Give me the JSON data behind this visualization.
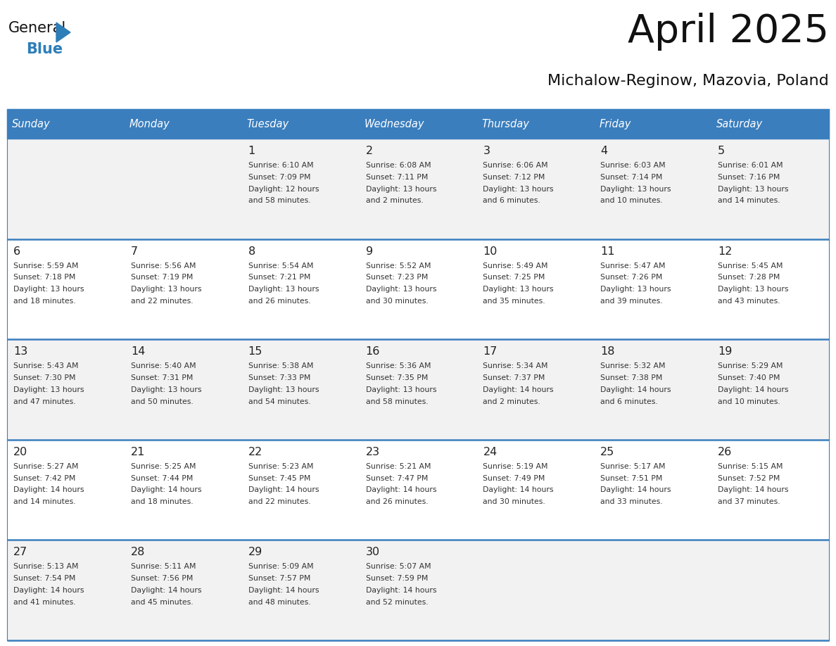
{
  "title": "April 2025",
  "subtitle": "Michalow-Reginow, Mazovia, Poland",
  "header_bg_color": "#3a7ebe",
  "header_text_color": "#FFFFFF",
  "day_names": [
    "Sunday",
    "Monday",
    "Tuesday",
    "Wednesday",
    "Thursday",
    "Friday",
    "Saturday"
  ],
  "row_colors": [
    "#f2f2f2",
    "#ffffff",
    "#f2f2f2",
    "#ffffff",
    "#f2f2f2"
  ],
  "separator_color": "#3a7ebe",
  "date_color": "#222222",
  "cell_text_color": "#333333",
  "calendar_data": [
    [
      {
        "day": "",
        "info": ""
      },
      {
        "day": "",
        "info": ""
      },
      {
        "day": "1",
        "info": "Sunrise: 6:10 AM\nSunset: 7:09 PM\nDaylight: 12 hours\nand 58 minutes."
      },
      {
        "day": "2",
        "info": "Sunrise: 6:08 AM\nSunset: 7:11 PM\nDaylight: 13 hours\nand 2 minutes."
      },
      {
        "day": "3",
        "info": "Sunrise: 6:06 AM\nSunset: 7:12 PM\nDaylight: 13 hours\nand 6 minutes."
      },
      {
        "day": "4",
        "info": "Sunrise: 6:03 AM\nSunset: 7:14 PM\nDaylight: 13 hours\nand 10 minutes."
      },
      {
        "day": "5",
        "info": "Sunrise: 6:01 AM\nSunset: 7:16 PM\nDaylight: 13 hours\nand 14 minutes."
      }
    ],
    [
      {
        "day": "6",
        "info": "Sunrise: 5:59 AM\nSunset: 7:18 PM\nDaylight: 13 hours\nand 18 minutes."
      },
      {
        "day": "7",
        "info": "Sunrise: 5:56 AM\nSunset: 7:19 PM\nDaylight: 13 hours\nand 22 minutes."
      },
      {
        "day": "8",
        "info": "Sunrise: 5:54 AM\nSunset: 7:21 PM\nDaylight: 13 hours\nand 26 minutes."
      },
      {
        "day": "9",
        "info": "Sunrise: 5:52 AM\nSunset: 7:23 PM\nDaylight: 13 hours\nand 30 minutes."
      },
      {
        "day": "10",
        "info": "Sunrise: 5:49 AM\nSunset: 7:25 PM\nDaylight: 13 hours\nand 35 minutes."
      },
      {
        "day": "11",
        "info": "Sunrise: 5:47 AM\nSunset: 7:26 PM\nDaylight: 13 hours\nand 39 minutes."
      },
      {
        "day": "12",
        "info": "Sunrise: 5:45 AM\nSunset: 7:28 PM\nDaylight: 13 hours\nand 43 minutes."
      }
    ],
    [
      {
        "day": "13",
        "info": "Sunrise: 5:43 AM\nSunset: 7:30 PM\nDaylight: 13 hours\nand 47 minutes."
      },
      {
        "day": "14",
        "info": "Sunrise: 5:40 AM\nSunset: 7:31 PM\nDaylight: 13 hours\nand 50 minutes."
      },
      {
        "day": "15",
        "info": "Sunrise: 5:38 AM\nSunset: 7:33 PM\nDaylight: 13 hours\nand 54 minutes."
      },
      {
        "day": "16",
        "info": "Sunrise: 5:36 AM\nSunset: 7:35 PM\nDaylight: 13 hours\nand 58 minutes."
      },
      {
        "day": "17",
        "info": "Sunrise: 5:34 AM\nSunset: 7:37 PM\nDaylight: 14 hours\nand 2 minutes."
      },
      {
        "day": "18",
        "info": "Sunrise: 5:32 AM\nSunset: 7:38 PM\nDaylight: 14 hours\nand 6 minutes."
      },
      {
        "day": "19",
        "info": "Sunrise: 5:29 AM\nSunset: 7:40 PM\nDaylight: 14 hours\nand 10 minutes."
      }
    ],
    [
      {
        "day": "20",
        "info": "Sunrise: 5:27 AM\nSunset: 7:42 PM\nDaylight: 14 hours\nand 14 minutes."
      },
      {
        "day": "21",
        "info": "Sunrise: 5:25 AM\nSunset: 7:44 PM\nDaylight: 14 hours\nand 18 minutes."
      },
      {
        "day": "22",
        "info": "Sunrise: 5:23 AM\nSunset: 7:45 PM\nDaylight: 14 hours\nand 22 minutes."
      },
      {
        "day": "23",
        "info": "Sunrise: 5:21 AM\nSunset: 7:47 PM\nDaylight: 14 hours\nand 26 minutes."
      },
      {
        "day": "24",
        "info": "Sunrise: 5:19 AM\nSunset: 7:49 PM\nDaylight: 14 hours\nand 30 minutes."
      },
      {
        "day": "25",
        "info": "Sunrise: 5:17 AM\nSunset: 7:51 PM\nDaylight: 14 hours\nand 33 minutes."
      },
      {
        "day": "26",
        "info": "Sunrise: 5:15 AM\nSunset: 7:52 PM\nDaylight: 14 hours\nand 37 minutes."
      }
    ],
    [
      {
        "day": "27",
        "info": "Sunrise: 5:13 AM\nSunset: 7:54 PM\nDaylight: 14 hours\nand 41 minutes."
      },
      {
        "day": "28",
        "info": "Sunrise: 5:11 AM\nSunset: 7:56 PM\nDaylight: 14 hours\nand 45 minutes."
      },
      {
        "day": "29",
        "info": "Sunrise: 5:09 AM\nSunset: 7:57 PM\nDaylight: 14 hours\nand 48 minutes."
      },
      {
        "day": "30",
        "info": "Sunrise: 5:07 AM\nSunset: 7:59 PM\nDaylight: 14 hours\nand 52 minutes."
      },
      {
        "day": "",
        "info": ""
      },
      {
        "day": "",
        "info": ""
      },
      {
        "day": "",
        "info": ""
      }
    ]
  ],
  "fig_width": 11.88,
  "fig_height": 9.18,
  "dpi": 100
}
